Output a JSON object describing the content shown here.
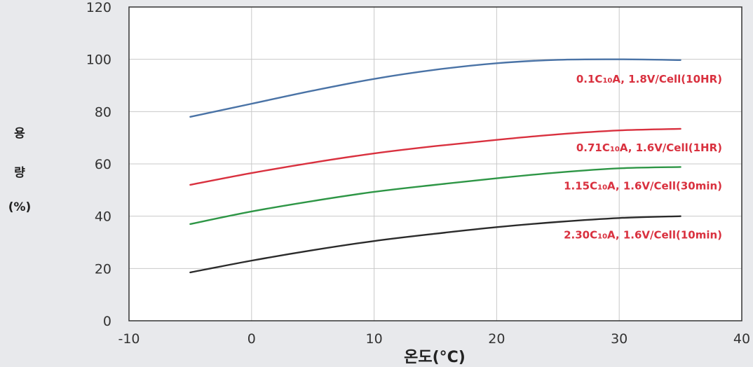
{
  "chart_data": {
    "type": "line",
    "title": "",
    "xlabel": "온도(°C)",
    "ylabel_lines": [
      "용",
      "량",
      "(%)"
    ],
    "xlim": [
      -10,
      40
    ],
    "ylim": [
      0,
      120
    ],
    "xticks": [
      -10,
      0,
      10,
      20,
      30,
      40
    ],
    "yticks": [
      0,
      20,
      40,
      60,
      80,
      100,
      120
    ],
    "grid": true,
    "series": [
      {
        "name": "0.1C10A, 1.8V/Cell(10HR)",
        "label_parts": [
          "0.1C",
          "10",
          "A, 1.8V/Cell(10HR)"
        ],
        "color": "#4a73a6",
        "x": [
          -5,
          0,
          5,
          10,
          15,
          20,
          25,
          30,
          35
        ],
        "y": [
          78,
          83,
          88,
          92.5,
          96,
          98.5,
          99.8,
          100,
          99.7
        ]
      },
      {
        "name": "0.71C10A, 1.6V/Cell(1HR)",
        "label_parts": [
          "0.71C",
          "10",
          "A, 1.6V/Cell(1HR)"
        ],
        "color": "#d9313f",
        "x": [
          -5,
          0,
          5,
          10,
          15,
          20,
          25,
          30,
          35
        ],
        "y": [
          52,
          56.5,
          60.5,
          64,
          66.8,
          69.2,
          71.3,
          72.8,
          73.4
        ]
      },
      {
        "name": "1.15C10A, 1.6V/Cell(30min)",
        "label_parts": [
          "1.15C",
          "10",
          "A, 1.6V/Cell(30min)"
        ],
        "color": "#2e9646",
        "x": [
          -5,
          0,
          5,
          10,
          15,
          20,
          25,
          30,
          35
        ],
        "y": [
          37,
          41.8,
          45.8,
          49.3,
          52,
          54.5,
          56.7,
          58.3,
          58.8
        ]
      },
      {
        "name": "2.30C10A, 1.6V/Cell(10min)",
        "label_parts": [
          "2.30C",
          "10",
          "A, 1.6V/Cell(10min)"
        ],
        "color": "#2b2b2b",
        "x": [
          -5,
          0,
          5,
          10,
          15,
          20,
          25,
          30,
          35
        ],
        "y": [
          18.5,
          23,
          27,
          30.5,
          33.3,
          35.8,
          37.8,
          39.3,
          40
        ]
      }
    ],
    "label_color": "#d9313f"
  }
}
